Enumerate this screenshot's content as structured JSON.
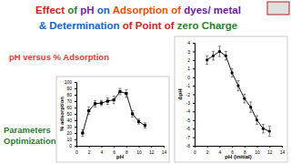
{
  "header": {
    "lines": [
      [
        {
          "text": "Effect ",
          "color": "#d7191c"
        },
        {
          "text": "of ",
          "color": "#2e7d32"
        },
        {
          "text": "pH ",
          "color": "#7b1fa2"
        },
        {
          "text": "on ",
          "color": "#1565c0"
        },
        {
          "text": "Adsorption of ",
          "color": "#e65100"
        },
        {
          "text": "dyes/ metal",
          "color": "#6a1b9a"
        }
      ],
      [
        {
          "text": "& Determination ",
          "color": "#1565c0"
        },
        {
          "text": "of Point of ",
          "color": "#c62828"
        },
        {
          "text": "zero Charge",
          "color": "#2e7d32"
        }
      ]
    ]
  },
  "subtitle": {
    "text": "pH versus % Adsorption",
    "color": "#e53935"
  },
  "side_label": {
    "lines": [
      "Parameters",
      "Optimization"
    ],
    "color": "#2e7d32"
  },
  "chart_data": [
    {
      "type": "line",
      "x_label": "pH",
      "y_label": "% adsorption",
      "x": [
        1,
        2,
        3,
        4,
        5,
        6,
        7,
        8,
        9,
        10,
        11
      ],
      "values": [
        20,
        55,
        66,
        67,
        70,
        72,
        85,
        82,
        50,
        38,
        32
      ],
      "errors": [
        5,
        6,
        5,
        4,
        5,
        6,
        5,
        6,
        5,
        4,
        4
      ],
      "color": "#000000",
      "marker": "square",
      "grid": false,
      "xlim": [
        0,
        14
      ],
      "xticks": [
        0,
        2,
        4,
        6,
        8,
        10,
        12,
        14
      ],
      "ylim": [
        0,
        100
      ],
      "yticks": [
        0,
        10,
        20,
        30,
        40,
        50,
        60,
        70,
        80,
        90,
        100
      ]
    },
    {
      "type": "line",
      "x_label": "pH (initial)",
      "y_label": "ΔpH",
      "x": [
        2,
        3,
        4,
        5,
        6,
        7,
        8,
        9,
        10,
        11,
        12
      ],
      "values": [
        2,
        2.5,
        3,
        2.5,
        0.5,
        -1,
        -2.5,
        -3.5,
        -5,
        -6,
        -6.3
      ],
      "errors": [
        0.5,
        0.5,
        0.6,
        0.5,
        0.5,
        0.6,
        0.5,
        0.6,
        0.5,
        0.5,
        0.6
      ],
      "color": "#000000",
      "marker": "circle",
      "grid": false,
      "xlim": [
        0,
        14
      ],
      "xticks": [
        0,
        2,
        4,
        6,
        8,
        10,
        12,
        14
      ],
      "ylim": [
        -8,
        4
      ],
      "yticks": [
        -8,
        -7,
        -6,
        -5,
        -4,
        -3,
        -2,
        -1,
        0,
        1,
        2,
        3,
        4
      ]
    }
  ]
}
